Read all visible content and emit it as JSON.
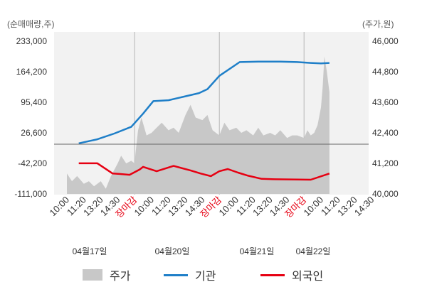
{
  "chart_data": {
    "type": "line",
    "left_unit": "(순매매량,주)",
    "right_unit": "(주가,원)",
    "y_left_ticks": [
      "233,000",
      "164,200",
      "95,400",
      "26,600",
      "-42,200",
      "-111,000"
    ],
    "y_left_range": [
      -111000,
      233000
    ],
    "y_right_ticks": [
      "46,000",
      "44,800",
      "43,600",
      "42,400",
      "41,200",
      "40,000"
    ],
    "y_right_range": [
      40000,
      46000
    ],
    "x_tick_labels": [
      {
        "text": "10:00",
        "close": false
      },
      {
        "text": "11:20",
        "close": false
      },
      {
        "text": "13:20",
        "close": false
      },
      {
        "text": "14:30",
        "close": false
      },
      {
        "text": "장마감",
        "close": true
      },
      {
        "text": "10:00",
        "close": false
      },
      {
        "text": "11:20",
        "close": false
      },
      {
        "text": "13:20",
        "close": false
      },
      {
        "text": "14:30",
        "close": false
      },
      {
        "text": "장마감",
        "close": true
      },
      {
        "text": "10:00",
        "close": false
      },
      {
        "text": "11:20",
        "close": false
      },
      {
        "text": "13:20",
        "close": false
      },
      {
        "text": "14:30",
        "close": false
      },
      {
        "text": "장마감",
        "close": true
      },
      {
        "text": "10:00",
        "close": false
      },
      {
        "text": "11:20",
        "close": false
      },
      {
        "text": "13:20",
        "close": false
      },
      {
        "text": "14:30",
        "close": false
      }
    ],
    "date_labels": [
      "04월17일",
      "04월20일",
      "04월21일",
      "04월22일"
    ],
    "series": [
      {
        "name": "주가",
        "type": "area",
        "axis": "right",
        "color": "#c8c8c8",
        "x": [
          0,
          0.3,
          0.6,
          1,
          1.3,
          1.6,
          2,
          2.3,
          2.6,
          3,
          3.2,
          3.5,
          3.8,
          4,
          4.05,
          4.2,
          4.4,
          4.7,
          5,
          5.3,
          5.6,
          6,
          6.3,
          6.6,
          7,
          7.3,
          7.6,
          8,
          8.3,
          8.6,
          9,
          9.3,
          9.6,
          10,
          10.3,
          10.6,
          11,
          11.3,
          11.6,
          12,
          12.3,
          12.6,
          13,
          13.3,
          13.6,
          14,
          14.2,
          14.4,
          14.6,
          14.8,
          15,
          15.1,
          15.2,
          15.35,
          15.5
        ],
        "y": [
          40800,
          40500,
          40700,
          40400,
          40500,
          40300,
          40500,
          40200,
          40700,
          41200,
          41500,
          41200,
          41300,
          41200,
          41600,
          42500,
          43000,
          42300,
          42400,
          42600,
          42800,
          42500,
          42600,
          42400,
          43100,
          43500,
          43000,
          42900,
          43100,
          42500,
          42300,
          42800,
          42500,
          42600,
          42400,
          42500,
          42300,
          42600,
          42300,
          42400,
          42300,
          42500,
          42200,
          42300,
          42300,
          42200,
          42500,
          42300,
          42400,
          42700,
          43400,
          44200,
          45400,
          44800,
          44000
        ]
      },
      {
        "name": "기관",
        "type": "line",
        "axis": "left",
        "color": "#1f7fc8",
        "x": [
          0.7,
          1.8,
          2.8,
          3.8,
          4.5,
          5.1,
          6,
          6.9,
          7.8,
          8.3,
          9,
          10.2,
          11.3,
          12.6,
          13.6,
          14.4,
          15,
          15.5
        ],
        "y": [
          3000,
          12000,
          25000,
          40000,
          70000,
          98000,
          100000,
          108000,
          116000,
          125000,
          155000,
          186000,
          187000,
          187000,
          186000,
          184000,
          183000,
          184000
        ]
      },
      {
        "name": "외국인",
        "type": "line",
        "axis": "left",
        "color": "#e60012",
        "x": [
          0.7,
          1.3,
          1.8,
          2.7,
          3.1,
          3.7,
          4.3,
          4.5,
          5.3,
          6.3,
          7.3,
          7.9,
          8.5,
          9,
          9.5,
          10.1,
          10.7,
          11.5,
          12.3,
          13.6,
          14.4,
          15.5
        ],
        "y": [
          -42000,
          -42000,
          -42000,
          -65000,
          -66000,
          -68000,
          -56000,
          -50000,
          -60000,
          -48000,
          -58000,
          -65000,
          -71000,
          -60000,
          -55000,
          -63000,
          -70000,
          -77000,
          -78000,
          -78500,
          -79000,
          -65000
        ]
      }
    ],
    "grid": true
  },
  "legend": {
    "price": "주가",
    "institution": "기관",
    "foreign": "외국인"
  }
}
